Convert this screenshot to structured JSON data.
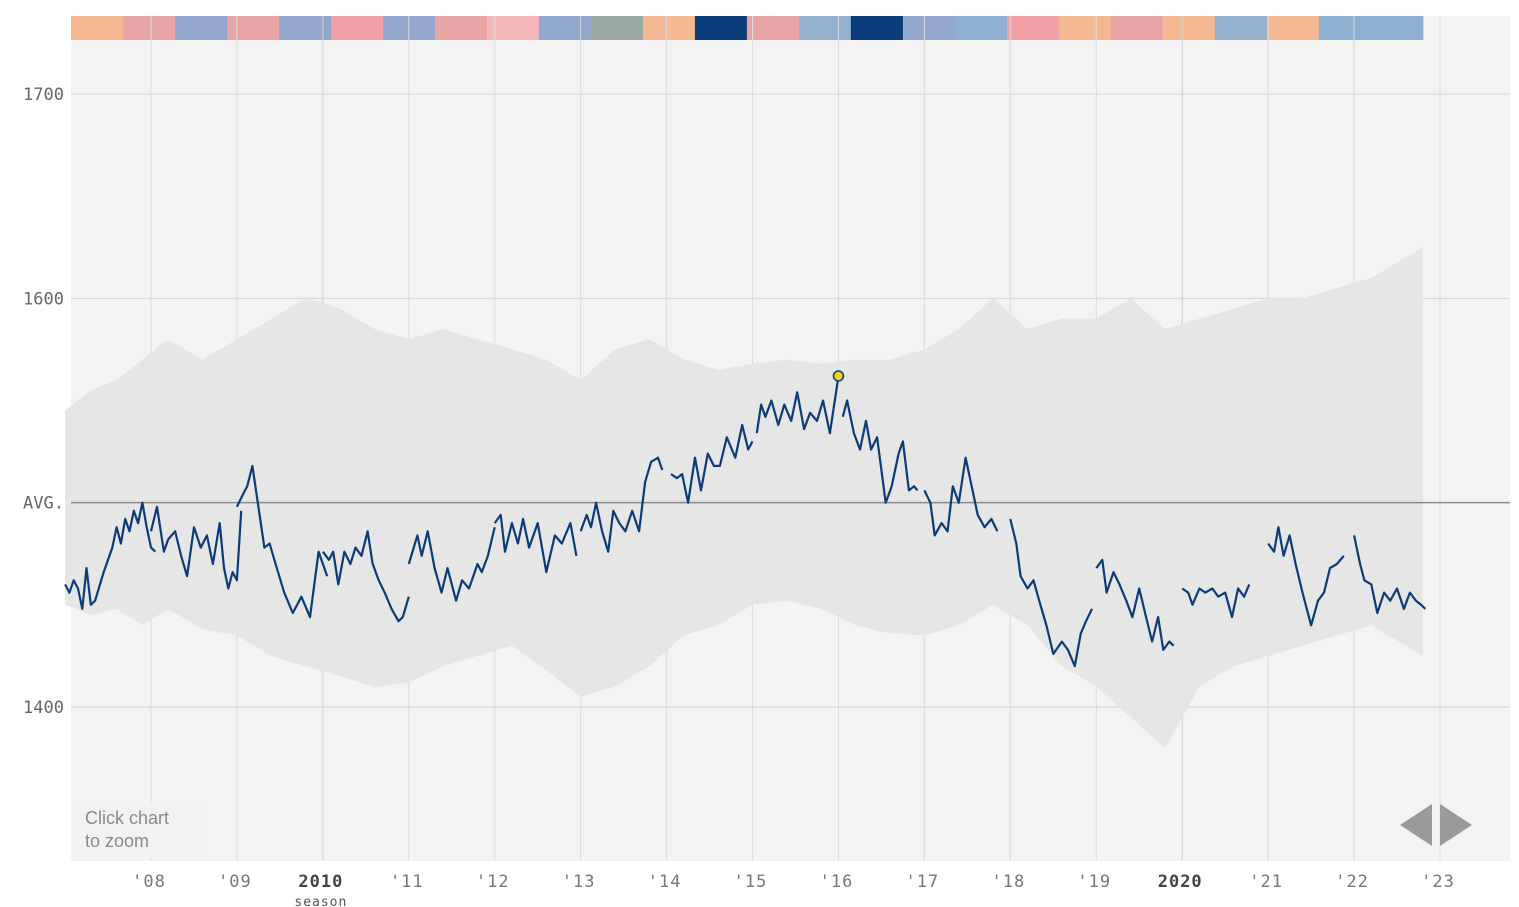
{
  "chart_data": {
    "type": "line",
    "ylim": [
      1310,
      1730
    ],
    "average_value": 1500,
    "y_ticks": [
      {
        "value": 1700,
        "label": "1700"
      },
      {
        "value": 1600,
        "label": "1600"
      },
      {
        "value": 1500,
        "label": "AVG."
      },
      {
        "value": 1400,
        "label": "1400"
      }
    ],
    "x_ticks": [
      {
        "season": 2008,
        "label": "'08",
        "major": false
      },
      {
        "season": 2009,
        "label": "'09",
        "major": false
      },
      {
        "season": 2010,
        "label": "2010",
        "major": true,
        "sublabel": "season"
      },
      {
        "season": 2011,
        "label": "'11",
        "major": false
      },
      {
        "season": 2012,
        "label": "'12",
        "major": false
      },
      {
        "season": 2013,
        "label": "'13",
        "major": false
      },
      {
        "season": 2014,
        "label": "'14",
        "major": false
      },
      {
        "season": 2015,
        "label": "'15",
        "major": false
      },
      {
        "season": 2016,
        "label": "'16",
        "major": false
      },
      {
        "season": 2017,
        "label": "'17",
        "major": false
      },
      {
        "season": 2018,
        "label": "'18",
        "major": false
      },
      {
        "season": 2019,
        "label": "'19",
        "major": false
      },
      {
        "season": 2020,
        "label": "2020",
        "major": true
      },
      {
        "season": 2021,
        "label": "'21",
        "major": false
      },
      {
        "season": 2022,
        "label": "'22",
        "major": false
      },
      {
        "season": 2023,
        "label": "'23",
        "major": false
      }
    ],
    "xlim": [
      2007.1,
      2024.0
    ],
    "seasons_end": 2022.8,
    "highlight_point": {
      "x": 2016.0,
      "y": 1562
    },
    "series": [
      {
        "points": [
          [
            2007.0,
            1460
          ],
          [
            2007.05,
            1456
          ],
          [
            2007.1,
            1462
          ],
          [
            2007.15,
            1458
          ],
          [
            2007.2,
            1448
          ],
          [
            2007.25,
            1468
          ],
          [
            2007.3,
            1450
          ],
          [
            2007.35,
            1452
          ],
          [
            2007.45,
            1466
          ],
          [
            2007.55,
            1478
          ],
          [
            2007.6,
            1488
          ],
          [
            2007.65,
            1480
          ],
          [
            2007.7,
            1492
          ],
          [
            2007.75,
            1486
          ],
          [
            2007.8,
            1496
          ],
          [
            2007.85,
            1490
          ],
          [
            2007.9,
            1500
          ],
          [
            2007.95,
            1488
          ],
          [
            2008.0,
            1478
          ],
          [
            2008.05,
            1476
          ]
        ]
      },
      {
        "points": [
          [
            2008.0,
            1486
          ],
          [
            2008.07,
            1498
          ],
          [
            2008.15,
            1476
          ],
          [
            2008.2,
            1482
          ],
          [
            2008.28,
            1486
          ],
          [
            2008.35,
            1474
          ],
          [
            2008.42,
            1464
          ],
          [
            2008.5,
            1488
          ],
          [
            2008.58,
            1478
          ],
          [
            2008.65,
            1484
          ],
          [
            2008.72,
            1470
          ],
          [
            2008.8,
            1490
          ],
          [
            2008.85,
            1468
          ],
          [
            2008.9,
            1458
          ],
          [
            2008.95,
            1466
          ],
          [
            2009.0,
            1462
          ],
          [
            2009.05,
            1496
          ]
        ]
      },
      {
        "points": [
          [
            2009.0,
            1498
          ],
          [
            2009.07,
            1504
          ],
          [
            2009.12,
            1508
          ],
          [
            2009.18,
            1518
          ],
          [
            2009.25,
            1498
          ],
          [
            2009.32,
            1478
          ],
          [
            2009.38,
            1480
          ],
          [
            2009.45,
            1470
          ],
          [
            2009.55,
            1456
          ],
          [
            2009.65,
            1446
          ],
          [
            2009.75,
            1454
          ],
          [
            2009.85,
            1444
          ],
          [
            2009.95,
            1476
          ],
          [
            2010.05,
            1464
          ]
        ]
      },
      {
        "points": [
          [
            2010.0,
            1476
          ],
          [
            2010.07,
            1472
          ],
          [
            2010.12,
            1476
          ],
          [
            2010.18,
            1460
          ],
          [
            2010.25,
            1476
          ],
          [
            2010.32,
            1470
          ],
          [
            2010.38,
            1478
          ],
          [
            2010.45,
            1474
          ],
          [
            2010.52,
            1486
          ],
          [
            2010.58,
            1470
          ],
          [
            2010.65,
            1462
          ],
          [
            2010.72,
            1456
          ],
          [
            2010.8,
            1448
          ],
          [
            2010.88,
            1442
          ],
          [
            2010.93,
            1444
          ],
          [
            2011.0,
            1454
          ]
        ]
      },
      {
        "points": [
          [
            2011.0,
            1470
          ],
          [
            2011.1,
            1484
          ],
          [
            2011.15,
            1474
          ],
          [
            2011.22,
            1486
          ],
          [
            2011.3,
            1468
          ],
          [
            2011.38,
            1456
          ],
          [
            2011.45,
            1468
          ],
          [
            2011.55,
            1452
          ],
          [
            2011.62,
            1462
          ],
          [
            2011.7,
            1458
          ],
          [
            2011.8,
            1470
          ],
          [
            2011.85,
            1466
          ],
          [
            2011.92,
            1474
          ],
          [
            2012.0,
            1488
          ]
        ]
      },
      {
        "points": [
          [
            2012.0,
            1490
          ],
          [
            2012.07,
            1494
          ],
          [
            2012.12,
            1476
          ],
          [
            2012.2,
            1490
          ],
          [
            2012.27,
            1480
          ],
          [
            2012.33,
            1492
          ],
          [
            2012.4,
            1478
          ],
          [
            2012.5,
            1490
          ],
          [
            2012.6,
            1466
          ],
          [
            2012.7,
            1484
          ],
          [
            2012.78,
            1480
          ],
          [
            2012.88,
            1490
          ],
          [
            2012.95,
            1474
          ]
        ]
      },
      {
        "points": [
          [
            2013.0,
            1486
          ],
          [
            2013.07,
            1494
          ],
          [
            2013.12,
            1488
          ],
          [
            2013.18,
            1500
          ],
          [
            2013.25,
            1486
          ],
          [
            2013.32,
            1476
          ],
          [
            2013.38,
            1496
          ],
          [
            2013.45,
            1490
          ],
          [
            2013.52,
            1486
          ],
          [
            2013.6,
            1496
          ],
          [
            2013.68,
            1486
          ],
          [
            2013.75,
            1510
          ],
          [
            2013.82,
            1520
          ],
          [
            2013.9,
            1522
          ],
          [
            2013.95,
            1516
          ]
        ]
      },
      {
        "points": [
          [
            2014.05,
            1514
          ],
          [
            2014.12,
            1512
          ],
          [
            2014.18,
            1514
          ],
          [
            2014.25,
            1500
          ],
          [
            2014.33,
            1522
          ],
          [
            2014.4,
            1506
          ],
          [
            2014.48,
            1524
          ],
          [
            2014.55,
            1518
          ],
          [
            2014.62,
            1518
          ],
          [
            2014.7,
            1532
          ],
          [
            2014.8,
            1522
          ],
          [
            2014.88,
            1538
          ],
          [
            2014.95,
            1526
          ],
          [
            2015.0,
            1530
          ]
        ]
      },
      {
        "points": [
          [
            2015.05,
            1534
          ],
          [
            2015.1,
            1548
          ],
          [
            2015.15,
            1542
          ],
          [
            2015.22,
            1550
          ],
          [
            2015.3,
            1538
          ],
          [
            2015.37,
            1548
          ],
          [
            2015.45,
            1540
          ],
          [
            2015.52,
            1554
          ],
          [
            2015.6,
            1536
          ],
          [
            2015.67,
            1544
          ],
          [
            2015.75,
            1540
          ],
          [
            2015.82,
            1550
          ],
          [
            2015.9,
            1534
          ],
          [
            2016.0,
            1562
          ]
        ]
      },
      {
        "points": [
          [
            2016.05,
            1542
          ],
          [
            2016.1,
            1550
          ],
          [
            2016.18,
            1534
          ],
          [
            2016.25,
            1526
          ],
          [
            2016.32,
            1540
          ],
          [
            2016.38,
            1526
          ],
          [
            2016.45,
            1532
          ],
          [
            2016.55,
            1500
          ],
          [
            2016.62,
            1508
          ],
          [
            2016.7,
            1524
          ],
          [
            2016.75,
            1530
          ],
          [
            2016.82,
            1506
          ],
          [
            2016.88,
            1508
          ],
          [
            2016.92,
            1506
          ]
        ]
      },
      {
        "points": [
          [
            2017.0,
            1506
          ],
          [
            2017.07,
            1500
          ],
          [
            2017.12,
            1484
          ],
          [
            2017.2,
            1490
          ],
          [
            2017.27,
            1486
          ],
          [
            2017.33,
            1508
          ],
          [
            2017.4,
            1500
          ],
          [
            2017.48,
            1522
          ],
          [
            2017.55,
            1508
          ],
          [
            2017.62,
            1494
          ],
          [
            2017.7,
            1488
          ],
          [
            2017.78,
            1492
          ],
          [
            2017.85,
            1486
          ]
        ]
      },
      {
        "points": [
          [
            2018.0,
            1492
          ],
          [
            2018.07,
            1480
          ],
          [
            2018.12,
            1464
          ],
          [
            2018.2,
            1458
          ],
          [
            2018.27,
            1462
          ],
          [
            2018.35,
            1450
          ],
          [
            2018.42,
            1440
          ],
          [
            2018.5,
            1426
          ],
          [
            2018.6,
            1432
          ],
          [
            2018.67,
            1428
          ],
          [
            2018.75,
            1420
          ],
          [
            2018.82,
            1436
          ],
          [
            2018.88,
            1442
          ],
          [
            2018.95,
            1448
          ]
        ]
      },
      {
        "points": [
          [
            2019.0,
            1468
          ],
          [
            2019.07,
            1472
          ],
          [
            2019.12,
            1456
          ],
          [
            2019.2,
            1466
          ],
          [
            2019.27,
            1460
          ],
          [
            2019.35,
            1452
          ],
          [
            2019.42,
            1444
          ],
          [
            2019.5,
            1458
          ],
          [
            2019.58,
            1444
          ],
          [
            2019.65,
            1432
          ],
          [
            2019.72,
            1444
          ],
          [
            2019.78,
            1428
          ],
          [
            2019.85,
            1432
          ],
          [
            2019.9,
            1430
          ]
        ]
      },
      {
        "points": [
          [
            2020.0,
            1458
          ],
          [
            2020.07,
            1456
          ],
          [
            2020.12,
            1450
          ],
          [
            2020.2,
            1458
          ],
          [
            2020.27,
            1456
          ],
          [
            2020.35,
            1458
          ],
          [
            2020.42,
            1454
          ],
          [
            2020.5,
            1456
          ],
          [
            2020.58,
            1444
          ],
          [
            2020.65,
            1458
          ],
          [
            2020.72,
            1454
          ],
          [
            2020.78,
            1460
          ]
        ]
      },
      {
        "points": [
          [
            2021.0,
            1480
          ],
          [
            2021.07,
            1476
          ],
          [
            2021.12,
            1488
          ],
          [
            2021.18,
            1474
          ],
          [
            2021.25,
            1484
          ],
          [
            2021.32,
            1470
          ],
          [
            2021.4,
            1456
          ],
          [
            2021.5,
            1440
          ],
          [
            2021.58,
            1452
          ],
          [
            2021.65,
            1456
          ],
          [
            2021.72,
            1468
          ],
          [
            2021.8,
            1470
          ],
          [
            2021.88,
            1474
          ]
        ]
      },
      {
        "points": [
          [
            2022.0,
            1484
          ],
          [
            2022.07,
            1470
          ],
          [
            2022.12,
            1462
          ],
          [
            2022.2,
            1460
          ],
          [
            2022.27,
            1446
          ],
          [
            2022.35,
            1456
          ],
          [
            2022.42,
            1452
          ],
          [
            2022.5,
            1458
          ],
          [
            2022.58,
            1448
          ],
          [
            2022.65,
            1456
          ],
          [
            2022.72,
            1452
          ],
          [
            2022.78,
            1450
          ],
          [
            2022.83,
            1448
          ]
        ]
      }
    ],
    "band": {
      "x": [
        2007.0,
        2007.3,
        2007.6,
        2007.9,
        2008.2,
        2008.6,
        2009.0,
        2009.4,
        2009.8,
        2010.2,
        2010.6,
        2011.0,
        2011.4,
        2011.8,
        2012.2,
        2012.6,
        2013.0,
        2013.4,
        2013.8,
        2014.2,
        2014.6,
        2015.0,
        2015.4,
        2015.8,
        2016.2,
        2016.6,
        2017.0,
        2017.4,
        2017.8,
        2018.2,
        2018.6,
        2019.0,
        2019.4,
        2019.8,
        2020.2,
        2020.6,
        2021.0,
        2021.4,
        2021.8,
        2022.2,
        2022.6,
        2022.8
      ],
      "upper": [
        1545,
        1555,
        1560,
        1570,
        1580,
        1570,
        1580,
        1590,
        1600,
        1595,
        1585,
        1580,
        1585,
        1580,
        1575,
        1570,
        1560,
        1575,
        1580,
        1570,
        1565,
        1568,
        1570,
        1568,
        1570,
        1570,
        1575,
        1585,
        1600,
        1585,
        1590,
        1590,
        1600,
        1585,
        1590,
        1595,
        1600,
        1600,
        1605,
        1610,
        1620,
        1625
      ],
      "lower": [
        1450,
        1445,
        1448,
        1440,
        1448,
        1438,
        1435,
        1425,
        1420,
        1415,
        1410,
        1412,
        1420,
        1425,
        1430,
        1418,
        1405,
        1410,
        1420,
        1435,
        1440,
        1450,
        1452,
        1448,
        1440,
        1436,
        1435,
        1440,
        1450,
        1440,
        1420,
        1410,
        1395,
        1380,
        1410,
        1420,
        1425,
        1430,
        1435,
        1440,
        1430,
        1425
      ]
    },
    "era_colors": [
      "#f4b992",
      "#e8a5a5",
      "#94a7cc",
      "#e8a5a5",
      "#94a7cc",
      "#f4a0a8",
      "#94a7cc",
      "#e8a5a5",
      "#f4b6b8",
      "#8fa8cc",
      "#9aa8a4",
      "#f4b992",
      "#0a3d7a",
      "#e8a5a5",
      "#94b2d0",
      "#0a3d7a",
      "#94a7cc",
      "#8fb0d0",
      "#f4a0a8",
      "#f4b992",
      "#e8a5a5",
      "#f4b992",
      "#94b2d0",
      "#f4b992",
      "#8fb0d0",
      "#8fb0d0"
    ]
  },
  "zoom_hint": {
    "line1": "Click chart",
    "line2": "to zoom"
  }
}
